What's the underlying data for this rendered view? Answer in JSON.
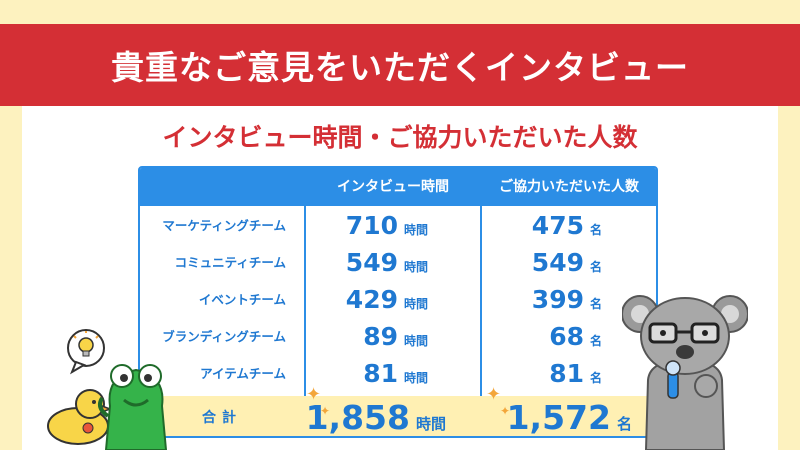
{
  "banner": {
    "title": "貴重なご意見をいただくインタビュー"
  },
  "section_title": "インタビュー時間・ご協力いただいた人数",
  "table": {
    "headers": {
      "team": "",
      "time": "インタビュー時間",
      "people": "ご協力いただいた人数"
    },
    "rows": [
      {
        "team": "マーケティングチーム",
        "time": "710",
        "time_unit": "時間",
        "people": "475",
        "people_unit": "名"
      },
      {
        "team": "コミュニティチーム",
        "time": "549",
        "time_unit": "時間",
        "people": "549",
        "people_unit": "名"
      },
      {
        "team": "イベントチーム",
        "time": "429",
        "time_unit": "時間",
        "people": "399",
        "people_unit": "名"
      },
      {
        "team": "ブランディングチーム",
        "time": "89",
        "time_unit": "時間",
        "people": "68",
        "people_unit": "名"
      },
      {
        "team": "アイテムチーム",
        "time": "81",
        "time_unit": "時間",
        "people": "81",
        "people_unit": "名"
      }
    ],
    "total": {
      "label": "合計",
      "time": "1,858",
      "time_unit": "時間",
      "people": "1,572",
      "people_unit": "名"
    }
  },
  "colors": {
    "banner_red": "#d42f35",
    "table_blue": "#2c8ee6",
    "text_blue": "#1f78d1",
    "total_bg": "#fff0b3",
    "stripe": "#fdf2bf"
  },
  "icons": [
    "lightbulb-icon",
    "sparkle-icon",
    "yellow-bird-mascot",
    "green-frog-mascot",
    "koala-mascot"
  ]
}
